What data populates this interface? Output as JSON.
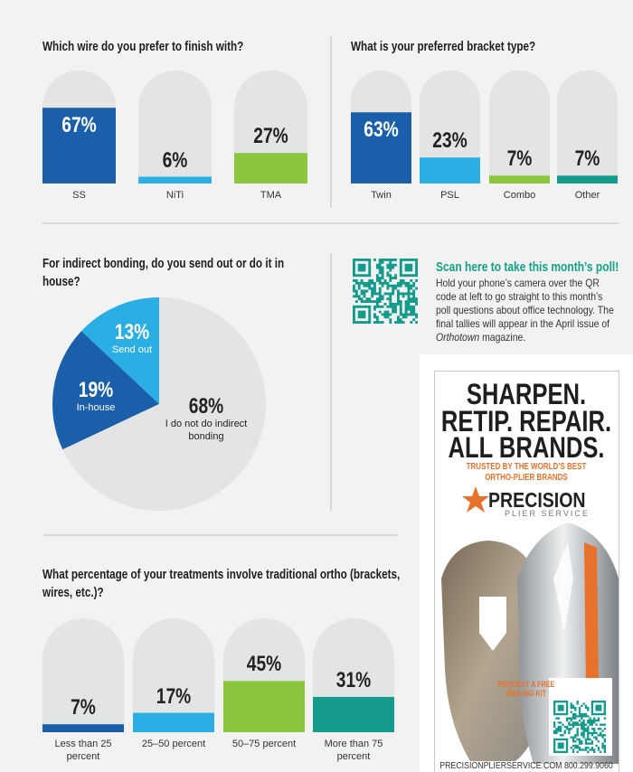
{
  "chart_data": [
    {
      "type": "bar",
      "title": "Which wire do you prefer to finish with?",
      "categories": [
        "SS",
        "NiTi",
        "TMA"
      ],
      "values": [
        67,
        6,
        27
      ],
      "value_labels": [
        "67%",
        "6%",
        "27%"
      ],
      "colors": [
        "#1b5ea9",
        "#2aaee3",
        "#8cc63e"
      ],
      "ylim": [
        0,
        100
      ]
    },
    {
      "type": "bar",
      "title": "What is your preferred bracket type?",
      "categories": [
        "Twin",
        "PSL",
        "Combo",
        "Other"
      ],
      "values": [
        63,
        23,
        7,
        7
      ],
      "value_labels": [
        "63%",
        "23%",
        "7%",
        "7%"
      ],
      "colors": [
        "#1b5ea9",
        "#2aaee3",
        "#8cc63e",
        "#149b8c"
      ],
      "ylim": [
        0,
        100
      ]
    },
    {
      "type": "pie",
      "title": "For indirect bonding, do you send out or do it in house?",
      "categories": [
        "Send out",
        "In-house",
        "I do not do indirect bonding"
      ],
      "values": [
        13,
        19,
        68
      ],
      "value_labels": [
        "13%",
        "19%",
        "68%"
      ],
      "colors": [
        "#2aaee3",
        "#1b5ea9",
        "#e4e4e4"
      ]
    },
    {
      "type": "bar",
      "title": "What percentage of your treatments involve traditional ortho (brackets, wires, etc.)?",
      "categories": [
        "Less than 25 percent",
        "25–50 percent",
        "50–75 percent",
        "More than 75 percent"
      ],
      "values": [
        7,
        17,
        45,
        31
      ],
      "value_labels": [
        "7%",
        "17%",
        "45%",
        "31%"
      ],
      "colors": [
        "#1b5ea9",
        "#2aaee3",
        "#8cc63e",
        "#149b8c"
      ],
      "ylim": [
        0,
        100
      ]
    }
  ],
  "poll": {
    "title": "Scan here to take this month’s poll!",
    "body": [
      "Hold your phone’s camera over the QR code at left to go straight to this month’s poll questions about office technology. The final tallies will appear in the April issue of ",
      "Orthotown",
      " magazine."
    ]
  },
  "ad": {
    "headline": [
      "SHARPEN.",
      "RETIP. REPAIR.",
      "ALL BRANDS."
    ],
    "tagline": [
      "TRUSTED BY THE WORLD’S BEST",
      "ORTHO-PLIER BRANDS"
    ],
    "brand": "PRECISION",
    "brand_sub": "PLIER SERVICE",
    "kit": [
      "REQUEST A FREE",
      "MAILING KIT"
    ],
    "footer": "PRECISIONPLIERSERVICE.COM 800.299.9060"
  }
}
